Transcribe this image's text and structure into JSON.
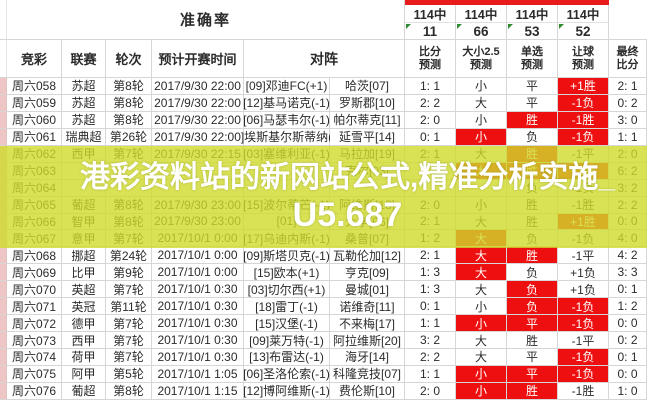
{
  "watermark": {
    "line1": "港彩资料站的新网站公式,精准分析实施_",
    "line2": "U5.687"
  },
  "header": {
    "accuracy_label": "准确率",
    "stats": [
      {
        "label": "114中",
        "value": "11"
      },
      {
        "label": "114中",
        "value": "66"
      },
      {
        "label": "114中",
        "value": "53"
      },
      {
        "label": "114中",
        "value": "52"
      }
    ],
    "columns": {
      "jingcai": "竞彩",
      "league": "联赛",
      "round": "轮次",
      "time": "预计开赛时间",
      "match": "对阵",
      "score_pred": [
        "比分",
        "预测"
      ],
      "size_pred": [
        "大小2.5",
        "预测"
      ],
      "pick_pred": [
        "单选",
        "预测"
      ],
      "handicap_pred": [
        "让球",
        "预测"
      ],
      "final_score": [
        "最终",
        "比分"
      ]
    }
  },
  "colors": {
    "miss_cell_red": "#ee1010",
    "top_bar_red": "#e81a1a",
    "overlay_band_yellow": "#d0d92b",
    "comment_marker_green": "#2e8b2e",
    "row_marker_pink": "#eec6c6"
  },
  "rows": [
    {
      "id": "周六058",
      "league": "苏超",
      "round": "第8轮",
      "time": "2017/9/30 22:00",
      "home": "[09]邓迪FC(+1)",
      "away": "哈茨[07]",
      "score": "1: 1",
      "size": "小",
      "pick": "平",
      "handicap": "+1胜",
      "final": "2: 1",
      "red": [
        "handicap"
      ]
    },
    {
      "id": "周六059",
      "league": "苏超",
      "round": "第8轮",
      "time": "2017/9/30 22:00",
      "home": "[12]基马诺克(-1)",
      "away": "罗斯郡[10]",
      "score": "2: 2",
      "size": "大",
      "pick": "平",
      "handicap": "-1负",
      "final": "0: 2",
      "red": [
        "handicap"
      ]
    },
    {
      "id": "周六060",
      "league": "苏超",
      "round": "第8轮",
      "time": "2017/9/30 22:00",
      "home": "[06]马瑟韦尔(-1)",
      "away": "帕尔蒂克[11]",
      "score": "2: 0",
      "size": "小",
      "pick": "胜",
      "handicap": "-1胜",
      "final": "3: 0",
      "red": [
        "pick",
        "handicap"
      ]
    },
    {
      "id": "周六061",
      "league": "瑞典超",
      "round": "第26轮",
      "time": "2017/9/30 22:00",
      "home": "]埃斯基尔斯蒂纳(",
      "away": "延雪平[14]",
      "score": "0: 1",
      "size": "小",
      "pick": "负",
      "handicap": "-1负",
      "final": "1: 1",
      "red": [
        "size",
        "handicap"
      ]
    },
    {
      "id": "周六062",
      "league": "西甲",
      "round": "第7轮",
      "time": "2017/9/30 22:15",
      "home": "[03]塞维利亚(-1)",
      "away": "马拉加[19]",
      "score": "2: 1",
      "size": "大",
      "pick": "胜",
      "handicap": "-1平",
      "final": "2: 0",
      "red": [
        "pick"
      ]
    },
    {
      "id": "周六063",
      "league": "",
      "round": "",
      "time": "",
      "home": "",
      "away": "克尔[03]",
      "score": "",
      "size": "大",
      "pick": "胜",
      "handicap": "+1胜",
      "final": "6: 2",
      "red": [
        "size",
        "pick",
        "handicap"
      ]
    },
    {
      "id": "周六064",
      "league": "",
      "round": "",
      "time": "",
      "home": "",
      "away": "",
      "score": "",
      "size": "",
      "pick": "负",
      "handicap": "-1负",
      "final": "3: 2",
      "red": []
    },
    {
      "id": "周六065",
      "league": "葡超",
      "round": "第8轮",
      "time": "2017/9/30 23:00",
      "home": "[15]波尔蒂芒(-1)",
      "away": "阿维斯[18]",
      "score": "2: 0",
      "size": "小",
      "pick": "胜",
      "handicap": "-1胜",
      "final": "2: 2",
      "red": []
    },
    {
      "id": "周六066",
      "league": "智甲",
      "round": "第8轮",
      "time": "2017/9/30 23:00",
      "home": "[01]",
      "away": "大学[06]",
      "score": "2: 1",
      "size": "大",
      "pick": "胜",
      "handicap": "+1胜",
      "final": "0: 0",
      "red": [
        "handicap"
      ]
    },
    {
      "id": "周六067",
      "league": "意甲",
      "round": "第7轮",
      "time": "2017/10/1 0:00",
      "home": "[17]乌迪内斯(-1)",
      "away": "桑普[07]",
      "score": "1: 2",
      "size": "大",
      "pick": "负",
      "handicap": "-1负",
      "final": "4: 0",
      "red": [
        "size"
      ]
    },
    {
      "id": "周六068",
      "league": "挪超",
      "round": "第24轮",
      "time": "2017/10/1 0:00",
      "home": "[09]斯塔贝克(-1)",
      "away": "瓦勒伦加[12]",
      "score": "2: 1",
      "size": "大",
      "pick": "胜",
      "handicap": "-1平",
      "final": "4: 2",
      "red": [
        "size",
        "pick"
      ]
    },
    {
      "id": "周六069",
      "league": "比甲",
      "round": "第9轮",
      "time": "2017/10/1 0:00",
      "home": "[15]欧本(+1)",
      "away": "亨克[09]",
      "score": "1: 3",
      "size": "大",
      "pick": "负",
      "handicap": "+1负",
      "final": "3: 3",
      "red": [
        "size"
      ]
    },
    {
      "id": "周六070",
      "league": "英超",
      "round": "第7轮",
      "time": "2017/10/1 0:30",
      "home": "[03]切尔西(+1)",
      "away": "曼城[01]",
      "score": "1: 3",
      "size": "大",
      "pick": "负",
      "handicap": "+1负",
      "final": "0: 1",
      "red": [
        "pick"
      ]
    },
    {
      "id": "周六071",
      "league": "英冠",
      "round": "第11轮",
      "time": "2017/10/1 0:30",
      "home": "[18]雷丁(-1)",
      "away": "诺维奇[11]",
      "score": "0: 1",
      "size": "小",
      "pick": "负",
      "handicap": "-1负",
      "final": "1: 2",
      "red": [
        "pick",
        "handicap"
      ]
    },
    {
      "id": "周六072",
      "league": "德甲",
      "round": "第7轮",
      "time": "2017/10/1 0:30",
      "home": "[15]汉堡(-1)",
      "away": "不来梅[17]",
      "score": "1: 1",
      "size": "小",
      "pick": "平",
      "handicap": "-1负",
      "final": "0: 0",
      "red": [
        "size",
        "pick",
        "handicap"
      ]
    },
    {
      "id": "周六073",
      "league": "西甲",
      "round": "第7轮",
      "time": "2017/10/1 0:30",
      "home": "[09]莱万特(-1)",
      "away": "阿拉维斯[20]",
      "score": "3: 2",
      "size": "大",
      "pick": "胜",
      "handicap": "-1平",
      "final": "0: 2",
      "red": []
    },
    {
      "id": "周六074",
      "league": "荷甲",
      "round": "第7轮",
      "time": "2017/10/1 0:30",
      "home": "[13]布雷达(-1)",
      "away": "海牙[14]",
      "score": "2: 2",
      "size": "大",
      "pick": "平",
      "handicap": "-1负",
      "final": "0: 1",
      "red": [
        "handicap"
      ]
    },
    {
      "id": "周六075",
      "league": "阿甲",
      "round": "第5轮",
      "time": "2017/10/1 1:05",
      "home": "[06]圣洛伦索(-1)",
      "away": "科隆竞技[07]",
      "score": "1: 1",
      "size": "小",
      "pick": "平",
      "handicap": "-1负",
      "final": "0: 0",
      "red": [
        "size",
        "pick",
        "handicap"
      ]
    },
    {
      "id": "周六076",
      "league": "葡超",
      "round": "第8轮",
      "time": "2017/10/1 1:15",
      "home": "[12]博阿维斯(-1)",
      "away": "费伦斯[10]",
      "score": "2: 0",
      "size": "小",
      "pick": "胜",
      "handicap": "-1胜",
      "final": "1: 0",
      "red": [
        "size",
        "pick"
      ]
    }
  ]
}
